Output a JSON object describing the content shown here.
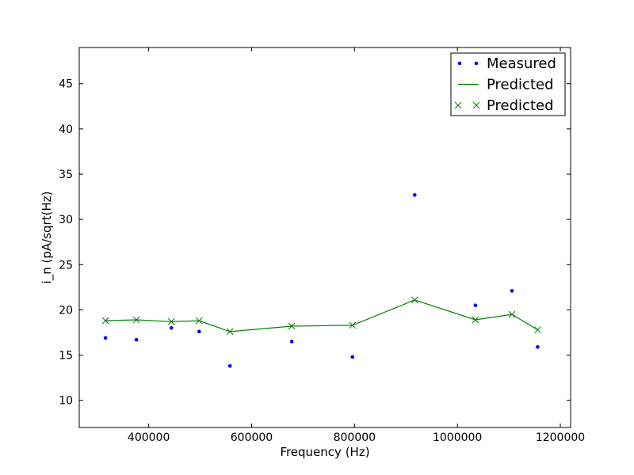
{
  "chart_data": {
    "type": "scatter",
    "title": "",
    "xlabel": "Frequency (Hz)",
    "ylabel": "i_n (pA/sqrt(Hz)",
    "xlim": [
      265000,
      1220000
    ],
    "ylim": [
      7,
      49
    ],
    "x_ticks": [
      400000,
      600000,
      800000,
      1000000,
      1200000
    ],
    "x_tick_labels": [
      "400000",
      "600000",
      "800000",
      "1000000",
      "1200000"
    ],
    "y_ticks": [
      10,
      15,
      20,
      25,
      30,
      35,
      40,
      45
    ],
    "y_tick_labels": [
      "10",
      "15",
      "20",
      "25",
      "30",
      "35",
      "40",
      "45"
    ],
    "grid": false,
    "legend_position": "top-right",
    "series": [
      {
        "name": "Measured",
        "style": "points",
        "color": "#0000ff",
        "x": [
          316000,
          376000,
          444000,
          498000,
          558000,
          678000,
          796000,
          917000,
          1035000,
          1106000,
          1156000
        ],
        "y": [
          16.9,
          16.7,
          18.0,
          17.6,
          13.8,
          16.5,
          14.8,
          32.7,
          20.5,
          22.1,
          15.9
        ]
      },
      {
        "name": "Predicted",
        "style": "line",
        "color": "#008000",
        "x": [
          316000,
          376000,
          444000,
          498000,
          558000,
          678000,
          796000,
          917000,
          1035000,
          1106000,
          1156000
        ],
        "y": [
          18.8,
          18.9,
          18.7,
          18.8,
          17.6,
          18.2,
          18.3,
          21.1,
          18.9,
          19.5,
          17.8
        ]
      },
      {
        "name": "Predicted",
        "style": "x-markers",
        "color": "#008000",
        "x": [
          316000,
          376000,
          444000,
          498000,
          558000,
          678000,
          796000,
          917000,
          1035000,
          1106000,
          1156000
        ],
        "y": [
          18.8,
          18.9,
          18.7,
          18.8,
          17.6,
          18.2,
          18.3,
          21.1,
          18.9,
          19.5,
          17.8
        ]
      }
    ]
  }
}
